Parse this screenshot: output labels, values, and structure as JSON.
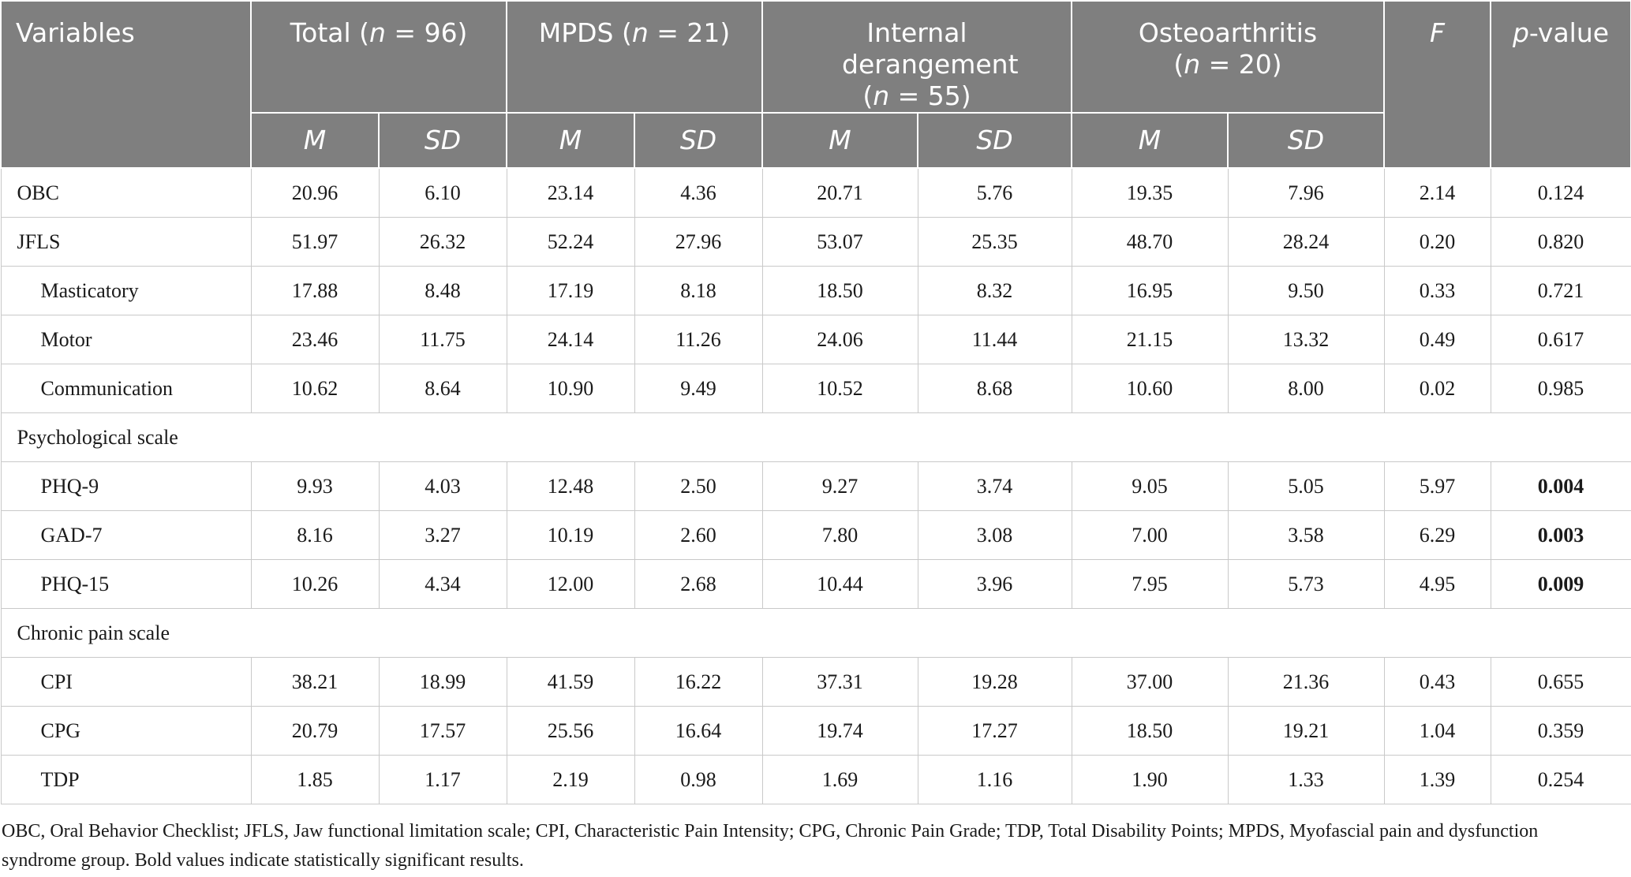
{
  "table": {
    "header": {
      "variables": "Variables",
      "groups": [
        {
          "id": "total",
          "pre": "Total (",
          "n": "n",
          "post": " = 96)",
          "line2": ""
        },
        {
          "id": "mpds",
          "pre": "MPDS (",
          "n": "n",
          "post": " = 21)",
          "line2": ""
        },
        {
          "id": "internal",
          "pre": "Internal derangement",
          "n": "",
          "post": "",
          "line2_pre": "(",
          "line2_n": "n",
          "line2_post": " = 55)"
        },
        {
          "id": "osteo",
          "pre": "Osteoarthritis",
          "n": "",
          "post": "",
          "line2_pre": "(",
          "line2_n": "n",
          "line2_post": " = 20)"
        }
      ],
      "f": "F",
      "p_italic": "p",
      "p_rest": "-value",
      "m": "M",
      "sd": "SD"
    },
    "rows": [
      {
        "label": "OBC",
        "indent": false,
        "values": [
          "20.96",
          "6.10",
          "23.14",
          "4.36",
          "20.71",
          "5.76",
          "19.35",
          "7.96",
          "2.14",
          "0.124"
        ],
        "p_bold": false
      },
      {
        "label": "JFLS",
        "indent": false,
        "values": [
          "51.97",
          "26.32",
          "52.24",
          "27.96",
          "53.07",
          "25.35",
          "48.70",
          "28.24",
          "0.20",
          "0.820"
        ],
        "p_bold": false
      },
      {
        "label": "Masticatory",
        "indent": true,
        "values": [
          "17.88",
          "8.48",
          "17.19",
          "8.18",
          "18.50",
          "8.32",
          "16.95",
          "9.50",
          "0.33",
          "0.721"
        ],
        "p_bold": false
      },
      {
        "label": "Motor",
        "indent": true,
        "values": [
          "23.46",
          "11.75",
          "24.14",
          "11.26",
          "24.06",
          "11.44",
          "21.15",
          "13.32",
          "0.49",
          "0.617"
        ],
        "p_bold": false
      },
      {
        "label": "Communication",
        "indent": true,
        "values": [
          "10.62",
          "8.64",
          "10.90",
          "9.49",
          "10.52",
          "8.68",
          "10.60",
          "8.00",
          "0.02",
          "0.985"
        ],
        "p_bold": false
      },
      {
        "section": "Psychological scale"
      },
      {
        "label": "PHQ-9",
        "indent": true,
        "values": [
          "9.93",
          "4.03",
          "12.48",
          "2.50",
          "9.27",
          "3.74",
          "9.05",
          "5.05",
          "5.97",
          "0.004"
        ],
        "p_bold": true
      },
      {
        "label": "GAD-7",
        "indent": true,
        "values": [
          "8.16",
          "3.27",
          "10.19",
          "2.60",
          "7.80",
          "3.08",
          "7.00",
          "3.58",
          "6.29",
          "0.003"
        ],
        "p_bold": true
      },
      {
        "label": "PHQ-15",
        "indent": true,
        "values": [
          "10.26",
          "4.34",
          "12.00",
          "2.68",
          "10.44",
          "3.96",
          "7.95",
          "5.73",
          "4.95",
          "0.009"
        ],
        "p_bold": true
      },
      {
        "section": "Chronic pain scale"
      },
      {
        "label": "CPI",
        "indent": true,
        "values": [
          "38.21",
          "18.99",
          "41.59",
          "16.22",
          "37.31",
          "19.28",
          "37.00",
          "21.36",
          "0.43",
          "0.655"
        ],
        "p_bold": false
      },
      {
        "label": "CPG",
        "indent": true,
        "values": [
          "20.79",
          "17.57",
          "25.56",
          "16.64",
          "19.74",
          "17.27",
          "18.50",
          "19.21",
          "1.04",
          "0.359"
        ],
        "p_bold": false
      },
      {
        "label": "TDP",
        "indent": true,
        "values": [
          "1.85",
          "1.17",
          "2.19",
          "0.98",
          "1.69",
          "1.16",
          "1.90",
          "1.33",
          "1.39",
          "0.254"
        ],
        "p_bold": false
      }
    ]
  },
  "footnote": "OBC, Oral Behavior Checklist; JFLS, Jaw functional limitation scale; CPI, Characteristic Pain Intensity; CPG, Chronic Pain Grade; TDP, Total Disability Points; MPDS, Myofascial pain and dysfunction syndrome group. Bold values indicate statistically significant results."
}
